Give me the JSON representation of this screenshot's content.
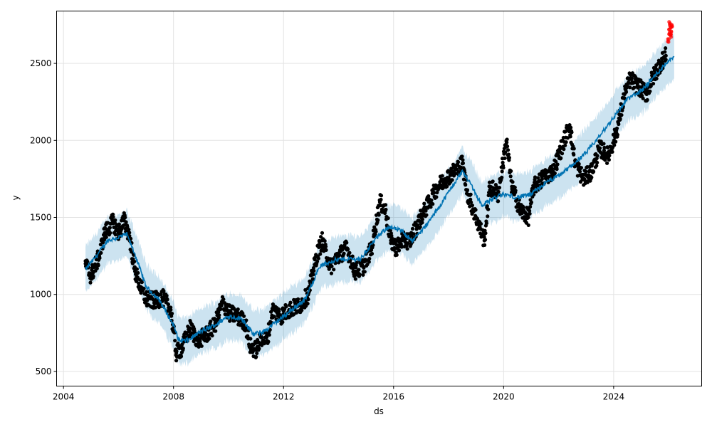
{
  "chart_data": {
    "type": "scatter",
    "title": "",
    "xlabel": "ds",
    "ylabel": "y",
    "xlim": [
      2003.75,
      2027.2
    ],
    "ylim": [
      405,
      2840
    ],
    "grid": true,
    "x_ticks": [
      "2004",
      "2008",
      "2012",
      "2016",
      "2020",
      "2024"
    ],
    "y_ticks": [
      "500",
      "1000",
      "1500",
      "2000",
      "2500"
    ],
    "colors": {
      "actual": "#000000",
      "forecast_line": "#0072B2",
      "interval": "#0072B2",
      "future_points": "#ff0000"
    },
    "yhat": [
      [
        2004.8,
        1160
      ],
      [
        2005.2,
        1250
      ],
      [
        2005.6,
        1350
      ],
      [
        2006.0,
        1370
      ],
      [
        2006.3,
        1390
      ],
      [
        2006.6,
        1260
      ],
      [
        2007.0,
        1050
      ],
      [
        2007.5,
        960
      ],
      [
        2008.0,
        800
      ],
      [
        2008.2,
        700
      ],
      [
        2008.5,
        700
      ],
      [
        2009.0,
        760
      ],
      [
        2009.5,
        800
      ],
      [
        2010.0,
        860
      ],
      [
        2010.5,
        840
      ],
      [
        2010.9,
        740
      ],
      [
        2011.3,
        760
      ],
      [
        2011.8,
        830
      ],
      [
        2012.3,
        900
      ],
      [
        2012.8,
        970
      ],
      [
        2013.3,
        1180
      ],
      [
        2013.8,
        1220
      ],
      [
        2014.3,
        1230
      ],
      [
        2014.8,
        1230
      ],
      [
        2015.3,
        1350
      ],
      [
        2015.8,
        1440
      ],
      [
        2016.3,
        1410
      ],
      [
        2016.7,
        1350
      ],
      [
        2017.2,
        1450
      ],
      [
        2017.7,
        1580
      ],
      [
        2018.2,
        1720
      ],
      [
        2018.5,
        1800
      ],
      [
        2018.8,
        1720
      ],
      [
        2019.2,
        1580
      ],
      [
        2019.6,
        1620
      ],
      [
        2020.0,
        1650
      ],
      [
        2020.5,
        1630
      ],
      [
        2021.0,
        1650
      ],
      [
        2021.5,
        1720
      ],
      [
        2022.0,
        1770
      ],
      [
        2022.5,
        1840
      ],
      [
        2023.0,
        1920
      ],
      [
        2023.5,
        2030
      ],
      [
        2024.0,
        2150
      ],
      [
        2024.5,
        2270
      ],
      [
        2025.0,
        2320
      ],
      [
        2025.5,
        2420
      ],
      [
        2026.0,
        2520
      ],
      [
        2026.2,
        2550
      ]
    ],
    "interval_halfwidth": 150,
    "actual": [
      [
        2004.8,
        1200
      ],
      [
        2005.0,
        1120
      ],
      [
        2005.3,
        1250
      ],
      [
        2005.5,
        1400
      ],
      [
        2005.8,
        1470
      ],
      [
        2006.0,
        1400
      ],
      [
        2006.2,
        1480
      ],
      [
        2006.4,
        1380
      ],
      [
        2006.6,
        1150
      ],
      [
        2006.8,
        1050
      ],
      [
        2007.0,
        970
      ],
      [
        2007.3,
        960
      ],
      [
        2007.6,
        980
      ],
      [
        2007.9,
        900
      ],
      [
        2008.1,
        620
      ],
      [
        2008.3,
        650
      ],
      [
        2008.6,
        780
      ],
      [
        2008.9,
        700
      ],
      [
        2009.2,
        740
      ],
      [
        2009.5,
        800
      ],
      [
        2009.8,
        950
      ],
      [
        2010.0,
        880
      ],
      [
        2010.3,
        860
      ],
      [
        2010.6,
        820
      ],
      [
        2010.8,
        660
      ],
      [
        2011.0,
        640
      ],
      [
        2011.2,
        720
      ],
      [
        2011.4,
        700
      ],
      [
        2011.6,
        900
      ],
      [
        2011.9,
        860
      ],
      [
        2012.2,
        900
      ],
      [
        2012.6,
        930
      ],
      [
        2012.9,
        1000
      ],
      [
        2013.2,
        1250
      ],
      [
        2013.4,
        1350
      ],
      [
        2013.7,
        1180
      ],
      [
        2014.0,
        1250
      ],
      [
        2014.3,
        1300
      ],
      [
        2014.6,
        1150
      ],
      [
        2014.9,
        1180
      ],
      [
        2015.2,
        1300
      ],
      [
        2015.5,
        1600
      ],
      [
        2015.7,
        1550
      ],
      [
        2015.9,
        1350
      ],
      [
        2016.1,
        1300
      ],
      [
        2016.3,
        1350
      ],
      [
        2016.6,
        1350
      ],
      [
        2017.0,
        1500
      ],
      [
        2017.3,
        1600
      ],
      [
        2017.6,
        1700
      ],
      [
        2017.9,
        1750
      ],
      [
        2018.2,
        1800
      ],
      [
        2018.5,
        1850
      ],
      [
        2018.7,
        1650
      ],
      [
        2019.0,
        1500
      ],
      [
        2019.3,
        1350
      ],
      [
        2019.5,
        1700
      ],
      [
        2019.8,
        1650
      ],
      [
        2020.1,
        2000
      ],
      [
        2020.3,
        1700
      ],
      [
        2020.6,
        1550
      ],
      [
        2020.9,
        1500
      ],
      [
        2021.1,
        1700
      ],
      [
        2021.4,
        1750
      ],
      [
        2021.8,
        1800
      ],
      [
        2022.1,
        1950
      ],
      [
        2022.4,
        2100
      ],
      [
        2022.6,
        1850
      ],
      [
        2022.9,
        1750
      ],
      [
        2023.2,
        1800
      ],
      [
        2023.5,
        1950
      ],
      [
        2023.8,
        1900
      ],
      [
        2024.1,
        2050
      ],
      [
        2024.4,
        2300
      ],
      [
        2024.6,
        2400
      ],
      [
        2024.9,
        2350
      ],
      [
        2025.2,
        2300
      ],
      [
        2025.4,
        2400
      ],
      [
        2025.7,
        2500
      ],
      [
        2025.9,
        2550
      ]
    ],
    "future_actual": [
      [
        2026.0,
        2650
      ],
      [
        2026.02,
        2700
      ],
      [
        2026.04,
        2760
      ],
      [
        2026.06,
        2720
      ],
      [
        2026.08,
        2680
      ],
      [
        2026.1,
        2740
      ]
    ]
  }
}
